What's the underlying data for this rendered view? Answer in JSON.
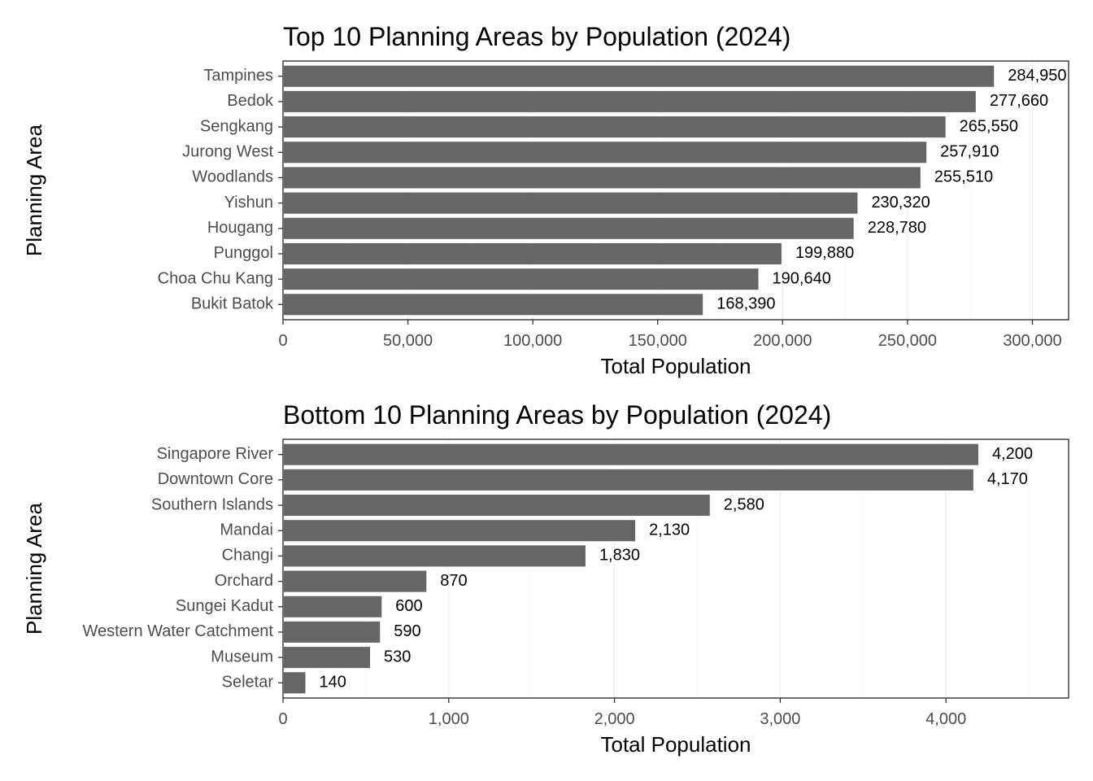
{
  "chart_data": [
    {
      "type": "bar",
      "orientation": "horizontal",
      "title": "Top 10 Planning Areas by Population (2024)",
      "xlabel": "Total Population",
      "ylabel": "Planning Area",
      "categories": [
        "Tampines",
        "Bedok",
        "Sengkang",
        "Jurong West",
        "Woodlands",
        "Yishun",
        "Hougang",
        "Punggol",
        "Choa Chu Kang",
        "Bukit Batok"
      ],
      "values": [
        284950,
        277660,
        265550,
        257910,
        255510,
        230320,
        228780,
        199880,
        190640,
        168390
      ],
      "value_labels": [
        "284,950",
        "277,660",
        "265,550",
        "257,910",
        "255,510",
        "230,320",
        "228,780",
        "199,880",
        "190,640",
        "168,390"
      ],
      "xlim": [
        0,
        314500
      ],
      "xticks": [
        0,
        50000,
        100000,
        150000,
        200000,
        250000,
        300000
      ],
      "xtick_labels": [
        "0",
        "50,000",
        "100,000",
        "150,000",
        "200,000",
        "250,000",
        "300,000"
      ],
      "grid": true,
      "bar_color": "#666666"
    },
    {
      "type": "bar",
      "orientation": "horizontal",
      "title": "Bottom 10 Planning Areas by Population (2024)",
      "xlabel": "Total Population",
      "ylabel": "Planning Area",
      "categories": [
        "Singapore River",
        "Downtown Core",
        "Southern Islands",
        "Mandai",
        "Changi",
        "Orchard",
        "Sungei Kadut",
        "Western Water Catchment",
        "Museum",
        "Seletar"
      ],
      "values": [
        4200,
        4170,
        2580,
        2130,
        1830,
        870,
        600,
        590,
        530,
        140
      ],
      "value_labels": [
        "4,200",
        "4,170",
        "2,580",
        "2,130",
        "1,830",
        "870",
        "600",
        "590",
        "530",
        "140"
      ],
      "xlim": [
        0,
        4740
      ],
      "xticks": [
        0,
        1000,
        2000,
        3000,
        4000
      ],
      "xtick_labels": [
        "0",
        "1,000",
        "2,000",
        "3,000",
        "4,000"
      ],
      "grid": true,
      "bar_color": "#666666"
    }
  ]
}
